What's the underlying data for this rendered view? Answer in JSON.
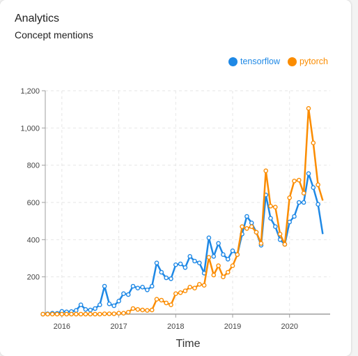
{
  "card": {
    "title": "Analytics",
    "subtitle": "Concept mentions"
  },
  "colors": {
    "tensorflow": "#1e88e5",
    "pytorch": "#fb8c00",
    "axis": "#9e9e9e",
    "grid": "#e6e6e6"
  },
  "chart_data": {
    "type": "line",
    "xlabel": "Time",
    "ylabel": "",
    "x_ticks": [
      "2016",
      "2017",
      "2018",
      "2019",
      "2020"
    ],
    "y_ticks": [
      "200",
      "400",
      "600",
      "800",
      "1,000",
      "1,200"
    ],
    "ylim": [
      0,
      1200
    ],
    "xlim": [
      "2015-09",
      "2020-08"
    ],
    "grid": true,
    "legend_position": "top-right",
    "months": [
      "2015-09",
      "2015-10",
      "2015-11",
      "2015-12",
      "2016-01",
      "2016-02",
      "2016-03",
      "2016-04",
      "2016-05",
      "2016-06",
      "2016-07",
      "2016-08",
      "2016-09",
      "2016-10",
      "2016-11",
      "2016-12",
      "2017-01",
      "2017-02",
      "2017-03",
      "2017-04",
      "2017-05",
      "2017-06",
      "2017-07",
      "2017-08",
      "2017-09",
      "2017-10",
      "2017-11",
      "2017-12",
      "2018-01",
      "2018-02",
      "2018-03",
      "2018-04",
      "2018-05",
      "2018-06",
      "2018-07",
      "2018-08",
      "2018-09",
      "2018-10",
      "2018-11",
      "2018-12",
      "2019-01",
      "2019-02",
      "2019-03",
      "2019-04",
      "2019-05",
      "2019-06",
      "2019-07",
      "2019-08",
      "2019-09",
      "2019-10",
      "2019-11",
      "2019-12",
      "2020-01",
      "2020-02",
      "2020-03",
      "2020-04",
      "2020-05",
      "2020-06",
      "2020-07",
      "2020-08"
    ],
    "series": [
      {
        "name": "tensorflow",
        "values": [
          0,
          2,
          5,
          4,
          15,
          12,
          14,
          20,
          50,
          25,
          22,
          30,
          50,
          150,
          55,
          45,
          70,
          110,
          105,
          150,
          140,
          145,
          130,
          150,
          275,
          225,
          195,
          190,
          265,
          270,
          250,
          310,
          285,
          275,
          220,
          410,
          310,
          380,
          320,
          295,
          340,
          320,
          430,
          525,
          490,
          440,
          370,
          640,
          515,
          470,
          400,
          375,
          495,
          525,
          600,
          600,
          755,
          680,
          590,
          430
        ]
      },
      {
        "name": "pytorch",
        "values": [
          0,
          0,
          0,
          0,
          0,
          0,
          0,
          0,
          0,
          0,
          0,
          0,
          0,
          2,
          2,
          2,
          5,
          5,
          10,
          30,
          25,
          22,
          20,
          22,
          80,
          75,
          60,
          50,
          110,
          115,
          125,
          145,
          140,
          160,
          155,
          305,
          210,
          260,
          200,
          225,
          260,
          320,
          470,
          460,
          470,
          440,
          380,
          770,
          580,
          575,
          430,
          375,
          625,
          715,
          720,
          650,
          1105,
          920,
          695,
          610
        ]
      }
    ]
  }
}
